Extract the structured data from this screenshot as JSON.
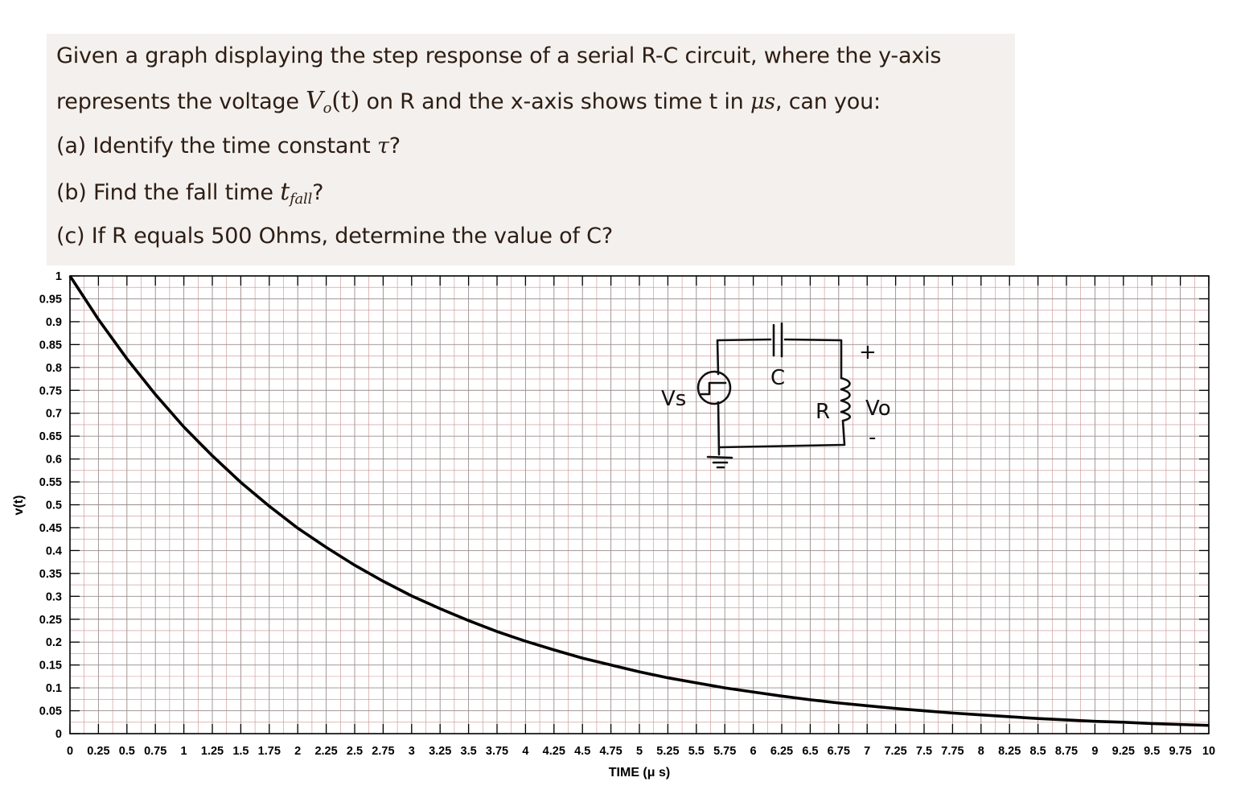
{
  "question": {
    "line1": "Given a graph displaying the step response of a serial R-C circuit, where the y-axis",
    "line2_pre": "represents the voltage ",
    "line2_v": "V",
    "line2_o": "o",
    "line2_t": "(t)",
    "line2_mid": " on R and the x-axis shows time t in ",
    "line2_us": "μs",
    "line2_post": ", can you:",
    "line3_pre": "(a) Identify the time constant ",
    "line3_tau": "τ",
    "line3_post": "?",
    "line4_pre": "(b) Find the fall time ",
    "line4_t": "t",
    "line4_sub": "fall",
    "line4_post": "?",
    "line5": "(c) If R equals 500 Ohms, determine the value of C?"
  },
  "circuit": {
    "source_label": "Vs",
    "capacitor_label": "C",
    "resistor_label": "R",
    "output_label": "Vo",
    "plus": "+",
    "minus": "-"
  },
  "colors": {
    "question_bg": "#f3f0ed",
    "question_text": "#2d1d14",
    "grid_minor": "#c98f8f",
    "curve": "#000000"
  },
  "chart_data": {
    "type": "line",
    "title": "",
    "xlabel": "TIME (μ s)",
    "ylabel": "v(t)",
    "xlim": [
      0,
      10
    ],
    "ylim": [
      0,
      1
    ],
    "grid": true,
    "x_ticks": [
      "0",
      "0.25",
      "0.5",
      "0.75",
      "1",
      "1.25",
      "1.5",
      "1.75",
      "2",
      "2.25",
      "2.5",
      "2.75",
      "3",
      "3.25",
      "3.5",
      "3.75",
      "4",
      "4.25",
      "4.5",
      "4.75",
      "5",
      "5.25",
      "5.5",
      "5.75",
      "6",
      "6.25",
      "6.5",
      "6.75",
      "7",
      "7.25",
      "7.5",
      "7.75",
      "8",
      "8.25",
      "8.5",
      "8.75",
      "9",
      "9.25",
      "9.5",
      "9.75",
      "10"
    ],
    "y_ticks": [
      "0",
      "0.05",
      "0.1",
      "0.15",
      "0.2",
      "0.25",
      "0.3",
      "0.35",
      "0.4",
      "0.45",
      "0.5",
      "0.55",
      "0.6",
      "0.65",
      "0.7",
      "0.75",
      "0.8",
      "0.85",
      "0.9",
      "0.95",
      "1"
    ],
    "series": [
      {
        "x": [
          0,
          0.25,
          0.5,
          0.75,
          1,
          1.25,
          1.5,
          1.75,
          2,
          2.25,
          2.5,
          2.75,
          3,
          3.25,
          3.5,
          3.75,
          4,
          4.25,
          4.5,
          4.75,
          5,
          5.25,
          5.5,
          5.75,
          6,
          6.25,
          6.5,
          6.75,
          7,
          7.25,
          7.5,
          7.75,
          8,
          8.25,
          8.5,
          8.75,
          9,
          9.25,
          9.5,
          9.75,
          10
        ],
        "values": [
          1,
          0.905,
          0.819,
          0.741,
          0.67,
          0.607,
          0.549,
          0.497,
          0.449,
          0.407,
          0.368,
          0.333,
          0.301,
          0.273,
          0.247,
          0.223,
          0.202,
          0.183,
          0.165,
          0.15,
          0.135,
          0.122,
          0.111,
          0.1,
          0.091,
          0.082,
          0.074,
          0.067,
          0.061,
          0.055,
          0.05,
          0.045,
          0.041,
          0.037,
          0.033,
          0.03,
          0.027,
          0.025,
          0.022,
          0.02,
          0.018
        ]
      }
    ]
  }
}
